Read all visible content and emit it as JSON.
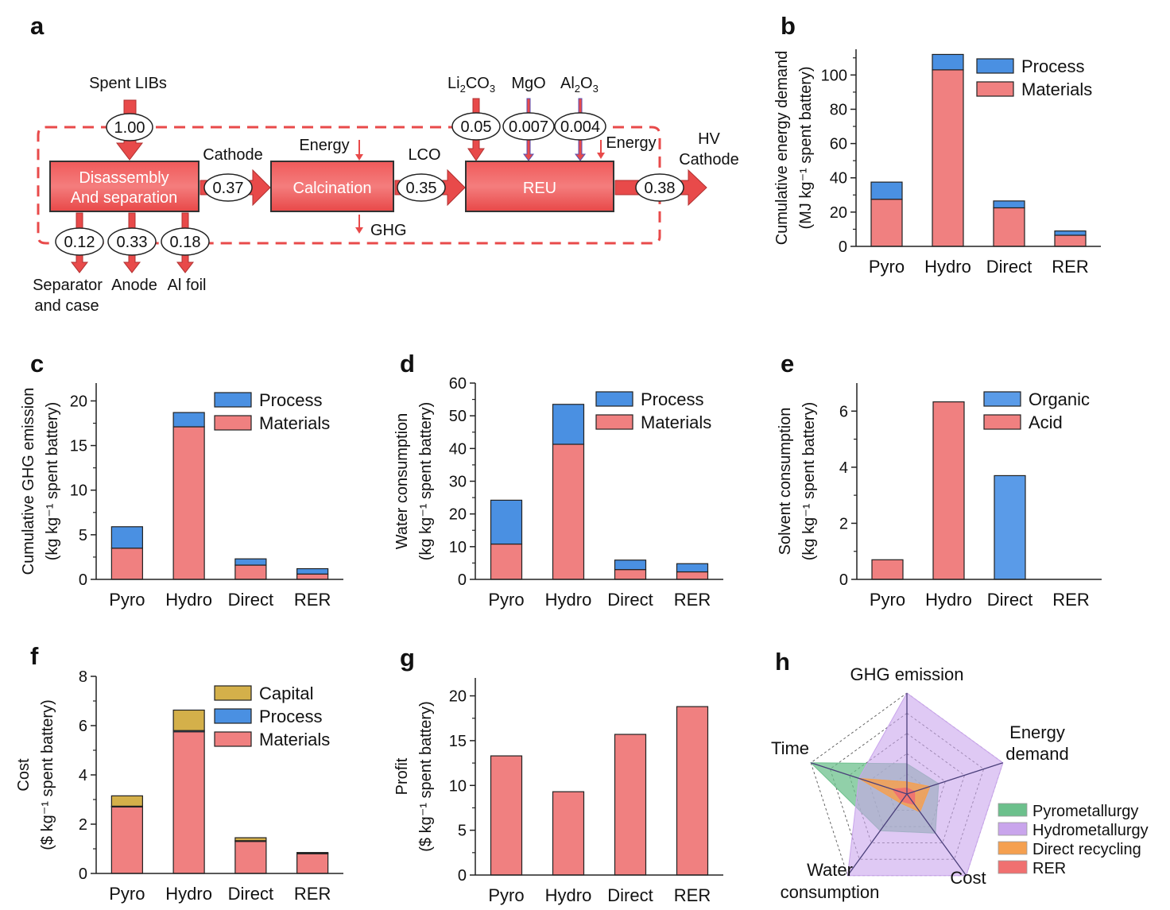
{
  "colors": {
    "materials": "#f08080",
    "process": "#4a90e2",
    "capital": "#d4b04a",
    "acid": "#f08080",
    "organic": "#5a9be8",
    "pyro": "#6cc08c",
    "hydro": "#c9a5ec",
    "direct": "#f5a050",
    "rer": "#f07070",
    "flow": "#e84a4a"
  },
  "flow": {
    "panel_label": "a",
    "spent": "Spent LIBs",
    "v_in": "1.00",
    "box1_line1": "Disassembly",
    "box1_line2": "And separation",
    "cathode": "Cathode",
    "v_cathode": "0.37",
    "energy1": "Energy",
    "box2": "Calcination",
    "ghg": "GHG",
    "lco": "LCO",
    "v_lco": "0.35",
    "li2co3_a": "Li",
    "li2co3_b": "2",
    "li2co3_c": "CO",
    "li2co3_d": "3",
    "mgo": "MgO",
    "al2o3_a": "Al",
    "al2o3_b": "2",
    "al2o3_c": "O",
    "al2o3_d": "3",
    "v_li": "0.05",
    "v_mg": "0.007",
    "v_al": "0.004",
    "energy2": "Energy",
    "box3": "REU",
    "v_out": "0.38",
    "hv1": "HV",
    "hv2": "Cathode",
    "v_sep": "0.12",
    "v_anode": "0.33",
    "v_al_foil": "0.18",
    "out_sep1": "Separator",
    "out_sep2": "and case",
    "out_anode": "Anode",
    "out_foil": "Al foil"
  },
  "chart_data": [
    {
      "panel": "b",
      "type": "bar",
      "stacked": true,
      "categories": [
        "Pyro",
        "Hydro",
        "Direct",
        "RER"
      ],
      "series": [
        {
          "name": "Materials",
          "values": [
            27.5,
            103,
            22.5,
            6.5
          ]
        },
        {
          "name": "Process",
          "values": [
            10,
            9,
            4,
            2.5
          ]
        }
      ],
      "legend": [
        "Process",
        "Materials"
      ],
      "ylabel1": "Cumulative energy demand",
      "ylabel2": "(MJ kg⁻¹ spent battery)",
      "ylim": [
        0,
        115
      ],
      "yticks": [
        0,
        20,
        40,
        60,
        80,
        100
      ]
    },
    {
      "panel": "c",
      "type": "bar",
      "stacked": true,
      "categories": [
        "Pyro",
        "Hydro",
        "Direct",
        "RER"
      ],
      "series": [
        {
          "name": "Materials",
          "values": [
            3.5,
            17.1,
            1.6,
            0.6
          ]
        },
        {
          "name": "Process",
          "values": [
            2.4,
            1.6,
            0.7,
            0.6
          ]
        }
      ],
      "legend": [
        "Process",
        "Materials"
      ],
      "ylabel1": "Cumulative GHG emission",
      "ylabel2": "(kg kg⁻¹ spent battery)",
      "ylim": [
        0,
        22
      ],
      "yticks": [
        0,
        5,
        10,
        15,
        20
      ]
    },
    {
      "panel": "d",
      "type": "bar",
      "stacked": true,
      "categories": [
        "Pyro",
        "Hydro",
        "Direct",
        "RER"
      ],
      "series": [
        {
          "name": "Materials",
          "values": [
            10.8,
            41.3,
            3,
            2.3
          ]
        },
        {
          "name": "Process",
          "values": [
            13.4,
            12.2,
            2.9,
            2.5
          ]
        }
      ],
      "legend": [
        "Process",
        "Materials"
      ],
      "ylabel1": "Water consumption",
      "ylabel2": "(kg kg⁻¹ spent battery)",
      "ylim": [
        0,
        60
      ],
      "yticks": [
        0,
        10,
        20,
        30,
        40,
        50,
        60
      ]
    },
    {
      "panel": "e",
      "type": "bar",
      "stacked": true,
      "categories": [
        "Pyro",
        "Hydro",
        "Direct",
        "RER"
      ],
      "series": [
        {
          "name": "Acid",
          "values": [
            0.7,
            6.33,
            0,
            0
          ]
        },
        {
          "name": "Organic",
          "values": [
            0,
            0,
            3.7,
            0
          ]
        }
      ],
      "legend": [
        "Organic",
        "Acid"
      ],
      "ylabel1": "Solvent consumption",
      "ylabel2": "(kg kg⁻¹ spent battery)",
      "ylim": [
        0,
        7
      ],
      "yticks": [
        0,
        2,
        4,
        6
      ]
    },
    {
      "panel": "f",
      "type": "bar",
      "stacked": true,
      "categories": [
        "Pyro",
        "Hydro",
        "Direct",
        "RER"
      ],
      "series": [
        {
          "name": "Materials",
          "values": [
            2.7,
            5.75,
            1.3,
            0.8
          ]
        },
        {
          "name": "Process",
          "values": [
            0.03,
            0.05,
            0.03,
            0.02
          ]
        },
        {
          "name": "Capital",
          "values": [
            0.42,
            0.83,
            0.12,
            0.03
          ]
        }
      ],
      "legend": [
        "Capital",
        "Process",
        "Materials"
      ],
      "ylabel1": "Cost",
      "ylabel2": "($ kg⁻¹ spent battery)",
      "ylim": [
        0,
        8
      ],
      "yticks": [
        0,
        2,
        4,
        6,
        8
      ]
    },
    {
      "panel": "g",
      "type": "bar",
      "stacked": false,
      "categories": [
        "Pyro",
        "Hydro",
        "Direct",
        "RER"
      ],
      "series": [
        {
          "name": "Profit",
          "values": [
            13.3,
            9.3,
            15.7,
            18.8
          ]
        }
      ],
      "legend": [],
      "ylabel1": "Profit",
      "ylabel2": "($ kg⁻¹ spent battery)",
      "ylim": [
        0,
        22
      ],
      "yticks": [
        0,
        5,
        10,
        15,
        20
      ]
    },
    {
      "panel": "h",
      "type": "radar",
      "axes": [
        "GHG emission",
        "Energy demand",
        "Cost",
        "Water consumption",
        "Time"
      ],
      "axis_text": {
        "ghg": "GHG emission",
        "energy1": "Energy",
        "energy2": "demand",
        "cost": "Cost",
        "water1": "Water",
        "water2": "consumption",
        "time": "Time"
      },
      "scale_max": 1,
      "series": [
        {
          "name": "Pyrometallurgy",
          "values": [
            0.3,
            0.33,
            0.48,
            0.45,
            1.0
          ]
        },
        {
          "name": "Hydrometallurgy",
          "values": [
            1.0,
            1.0,
            1.0,
            1.0,
            0.5
          ]
        },
        {
          "name": "Direct recycling",
          "values": [
            0.12,
            0.24,
            0.22,
            0.11,
            0.5
          ]
        },
        {
          "name": "RER",
          "values": [
            0.06,
            0.08,
            0.13,
            0.09,
            0.15
          ]
        }
      ]
    }
  ]
}
